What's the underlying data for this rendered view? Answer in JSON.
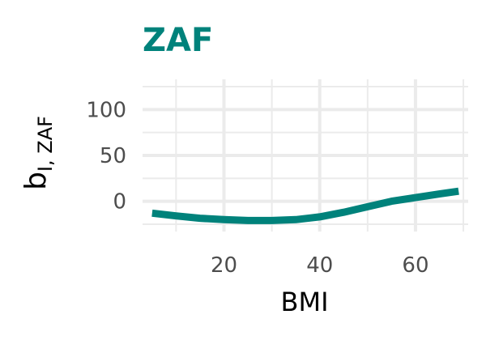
{
  "chart_data": {
    "type": "line",
    "title": "ZAF",
    "xlabel": "BMI",
    "ylabel_main": "b",
    "ylabel_sub": "I, ZAF",
    "xlim": [
      3,
      71
    ],
    "ylim": [
      -33,
      133
    ],
    "xticks": [
      20,
      40,
      60
    ],
    "yticks": [
      0,
      50,
      100
    ],
    "xminor": [
      10,
      30,
      50,
      70
    ],
    "yminor": [
      -25,
      25,
      75,
      125
    ],
    "grid": true,
    "legend": "none",
    "series": [
      {
        "color": "#00827b",
        "x": [
          5,
          10,
          15,
          20,
          25,
          30,
          35,
          40,
          45,
          50,
          55,
          60,
          65,
          69
        ],
        "y": [
          -13,
          -16,
          -18.5,
          -20,
          -21,
          -21,
          -20,
          -17,
          -12,
          -6,
          0,
          4,
          8,
          11
        ]
      }
    ]
  },
  "colors": {
    "accent": "#00827b",
    "grid": "#ebebeb",
    "tick_text": "#4d4d4d"
  }
}
